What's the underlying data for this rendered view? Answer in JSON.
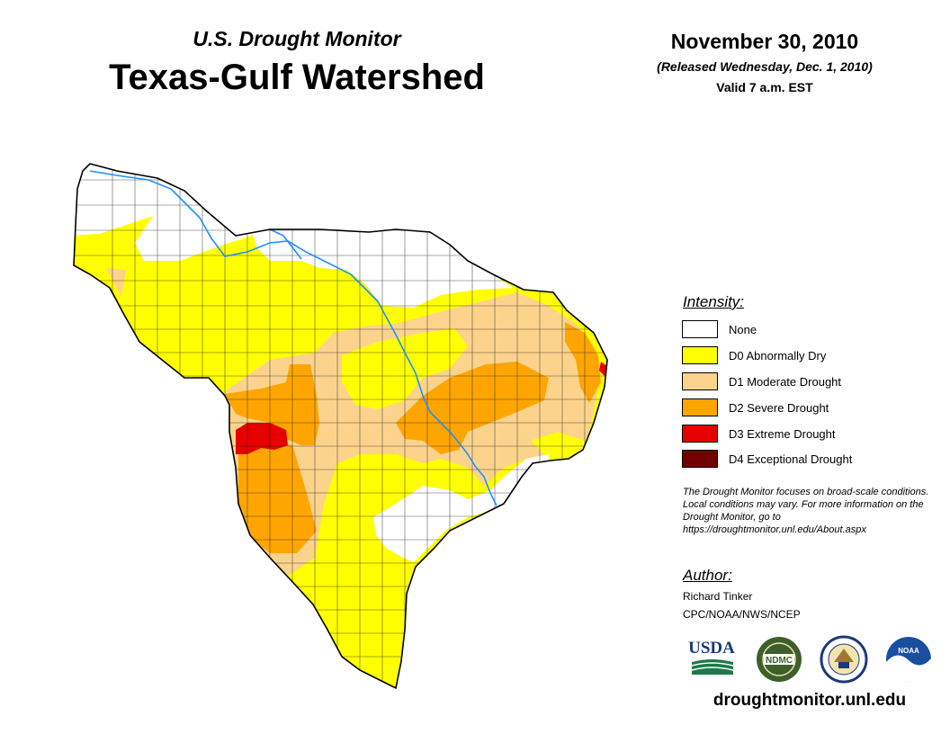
{
  "header": {
    "subtitle": "U.S. Drought Monitor",
    "title": "Texas-Gulf Watershed",
    "date": "November 30, 2010",
    "released": "(Released Wednesday, Dec. 1, 2010)",
    "valid": "Valid 7 a.m. EST"
  },
  "legend": {
    "heading": "Intensity:",
    "items": [
      {
        "label": "None",
        "color": "#ffffff"
      },
      {
        "label": "D0 Abnormally Dry",
        "color": "#ffff00"
      },
      {
        "label": "D1 Moderate Drought",
        "color": "#fcd38c"
      },
      {
        "label": "D2 Severe Drought",
        "color": "#ffa500"
      },
      {
        "label": "D3 Extreme Drought",
        "color": "#e60000"
      },
      {
        "label": "D4 Exceptional Drought",
        "color": "#730000"
      }
    ]
  },
  "note": "The Drought Monitor focuses on broad-scale conditions. Local conditions may vary. For more information on the Drought Monitor, go to https://droughtmonitor.unl.edu/About.aspx",
  "author": {
    "heading": "Author:",
    "name": "Richard Tinker",
    "org": "CPC/NOAA/NWS/NCEP"
  },
  "logos": {
    "usda": "USDA",
    "ndmc": "NDMC",
    "noaa": "NOAA"
  },
  "website": "droughtmonitor.unl.edu"
}
